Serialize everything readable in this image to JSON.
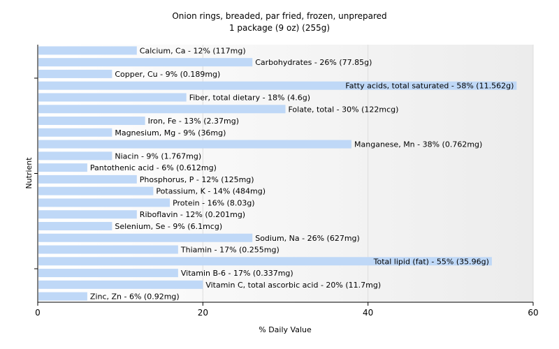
{
  "chart_data": {
    "type": "bar",
    "orientation": "horizontal",
    "title": "Onion rings, breaded, par fried, frozen, unprepared",
    "subtitle": "1 package (9 oz) (255g)",
    "xlabel": "% Daily Value",
    "ylabel": "Nutrient",
    "xlim": [
      0,
      60
    ],
    "xticks": [
      "0",
      "20",
      "40",
      "60"
    ],
    "grid": true,
    "bar_color": "#bfd8f7",
    "bars": [
      {
        "label": "Calcium, Ca - 12% (117mg)",
        "value": 12
      },
      {
        "label": "Carbohydrates - 26% (77.85g)",
        "value": 26
      },
      {
        "label": "Copper, Cu - 9% (0.189mg)",
        "value": 9
      },
      {
        "label": "Fatty acids, total saturated - 58% (11.562g)",
        "value": 58
      },
      {
        "label": "Fiber, total dietary - 18% (4.6g)",
        "value": 18
      },
      {
        "label": "Folate, total - 30% (122mcg)",
        "value": 30
      },
      {
        "label": "Iron, Fe - 13% (2.37mg)",
        "value": 13
      },
      {
        "label": "Magnesium, Mg - 9% (36mg)",
        "value": 9
      },
      {
        "label": "Manganese, Mn - 38% (0.762mg)",
        "value": 38
      },
      {
        "label": "Niacin - 9% (1.767mg)",
        "value": 9
      },
      {
        "label": "Pantothenic acid - 6% (0.612mg)",
        "value": 6
      },
      {
        "label": "Phosphorus, P - 12% (125mg)",
        "value": 12
      },
      {
        "label": "Potassium, K - 14% (484mg)",
        "value": 14
      },
      {
        "label": "Protein - 16% (8.03g)",
        "value": 16
      },
      {
        "label": "Riboflavin - 12% (0.201mg)",
        "value": 12
      },
      {
        "label": "Selenium, Se - 9% (6.1mcg)",
        "value": 9
      },
      {
        "label": "Sodium, Na - 26% (627mg)",
        "value": 26
      },
      {
        "label": "Thiamin - 17% (0.255mg)",
        "value": 17
      },
      {
        "label": "Total lipid (fat) - 55% (35.96g)",
        "value": 55
      },
      {
        "label": "Vitamin B-6 - 17% (0.337mg)",
        "value": 17
      },
      {
        "label": "Vitamin C, total ascorbic acid - 20% (11.7mg)",
        "value": 20
      },
      {
        "label": "Zinc, Zn - 6% (0.92mg)",
        "value": 6
      }
    ]
  }
}
